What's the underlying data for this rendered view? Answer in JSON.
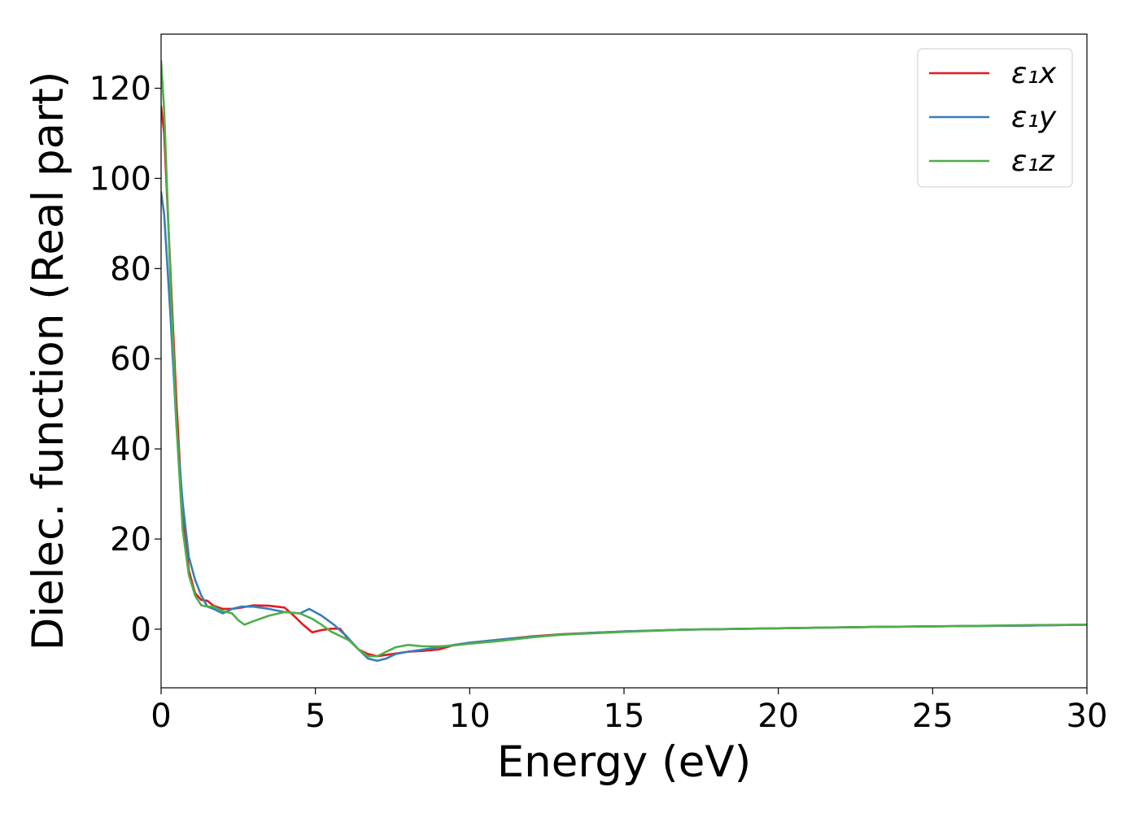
{
  "chart_data": {
    "type": "line",
    "title": "",
    "xlabel": "Energy (eV)",
    "ylabel": "Dielec. function (Real part)",
    "xlim": [
      0,
      30
    ],
    "ylim": [
      -13,
      132
    ],
    "xticks": [
      0,
      5,
      10,
      15,
      20,
      25,
      30
    ],
    "yticks": [
      0,
      20,
      40,
      60,
      80,
      100,
      120
    ],
    "xtick_labels": [
      "0",
      "5",
      "10",
      "15",
      "20",
      "25",
      "30"
    ],
    "ytick_labels": [
      "0",
      "20",
      "40",
      "60",
      "80",
      "100",
      "120"
    ],
    "grid": false,
    "legend_position": "top-right",
    "series": [
      {
        "name": "ε₁x",
        "color": "#e41a1c",
        "x": [
          0,
          0.1,
          0.3,
          0.5,
          0.7,
          0.9,
          1.1,
          1.3,
          1.5,
          1.7,
          2.0,
          2.3,
          2.6,
          3.0,
          3.5,
          4.0,
          4.3,
          4.6,
          4.9,
          5.2,
          5.5,
          5.8,
          6.1,
          6.4,
          6.7,
          7.0,
          7.5,
          8.0,
          8.5,
          9.0,
          9.5,
          10,
          11,
          12,
          13,
          14,
          15,
          17,
          20,
          23,
          26,
          28,
          30
        ],
        "y": [
          116,
          110,
          80,
          50,
          25,
          13,
          8,
          6.5,
          6.3,
          5.2,
          4.5,
          4.5,
          4.8,
          5.3,
          5.2,
          4.8,
          3.0,
          1.0,
          -0.7,
          -0.2,
          0.1,
          0.1,
          -2.5,
          -4.5,
          -5.5,
          -6.0,
          -5.5,
          -5.0,
          -4.8,
          -4.5,
          -3.5,
          -3.0,
          -2.3,
          -1.6,
          -1.1,
          -0.8,
          -0.5,
          -0.1,
          0.2,
          0.5,
          0.7,
          0.8,
          1.0
        ]
      },
      {
        "name": "ε₁y",
        "color": "#377eb8",
        "x": [
          0,
          0.1,
          0.3,
          0.5,
          0.7,
          0.9,
          1.1,
          1.3,
          1.5,
          1.7,
          2.0,
          2.3,
          2.6,
          3.0,
          3.5,
          4.0,
          4.5,
          4.8,
          5.2,
          5.6,
          6.0,
          6.4,
          6.7,
          7.0,
          7.3,
          7.6,
          8.0,
          8.5,
          9.0,
          9.5,
          10,
          11,
          12,
          13,
          14,
          15,
          17,
          20,
          23,
          26,
          28,
          30
        ],
        "y": [
          97,
          92,
          70,
          45,
          28,
          16,
          11,
          7.5,
          5.0,
          4.5,
          3.5,
          4.5,
          5.0,
          5.0,
          4.5,
          3.8,
          3.5,
          4.5,
          3.0,
          1.0,
          -1.5,
          -4.5,
          -6.5,
          -7.0,
          -6.5,
          -5.5,
          -5.0,
          -4.5,
          -4.0,
          -3.5,
          -3.0,
          -2.3,
          -1.7,
          -1.2,
          -0.8,
          -0.5,
          -0.1,
          0.2,
          0.5,
          0.7,
          0.8,
          1.0
        ]
      },
      {
        "name": "ε₁z",
        "color": "#4daf4a",
        "x": [
          0,
          0.1,
          0.3,
          0.5,
          0.7,
          0.9,
          1.1,
          1.3,
          1.5,
          1.7,
          2.0,
          2.3,
          2.5,
          2.7,
          3.0,
          3.5,
          4.0,
          4.5,
          4.9,
          5.2,
          5.5,
          5.8,
          6.1,
          6.4,
          6.7,
          7.0,
          7.3,
          7.6,
          8.0,
          8.5,
          9.0,
          9.5,
          10,
          11,
          12,
          13,
          14,
          15,
          17,
          20,
          23,
          26,
          28,
          30
        ],
        "y": [
          126,
          115,
          78,
          45,
          22,
          12,
          7.5,
          5.3,
          5.0,
          5.0,
          4.0,
          3.5,
          2.0,
          1.0,
          1.8,
          3.0,
          3.8,
          3.5,
          2.3,
          1.0,
          -0.5,
          -1.5,
          -2.5,
          -4.5,
          -6.0,
          -6.0,
          -5.0,
          -4.0,
          -3.5,
          -3.8,
          -3.8,
          -3.6,
          -3.2,
          -2.6,
          -1.8,
          -1.2,
          -0.9,
          -0.6,
          -0.1,
          0.2,
          0.5,
          0.7,
          0.9,
          1.0
        ]
      }
    ]
  }
}
